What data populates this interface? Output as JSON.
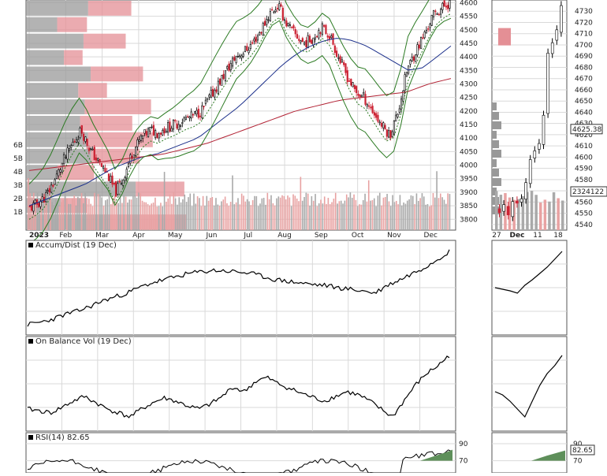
{
  "chart_data": [
    {
      "type": "candlestick",
      "panel": "price-main",
      "x_labels": [
        "2023",
        "Feb",
        "Mar",
        "Apr",
        "May",
        "Jun",
        "Jul",
        "Aug",
        "Sep",
        "Oct",
        "Nov",
        "Dec"
      ],
      "y_ticks": [
        3800,
        3850,
        3900,
        3950,
        4000,
        4050,
        4100,
        4150,
        4200,
        4250,
        4300,
        4350,
        4400,
        4450,
        4500,
        4550,
        4600
      ],
      "ylim": [
        3760,
        4610
      ],
      "volume_axis_labels": [
        "1B",
        "2B",
        "3B",
        "4B",
        "5B",
        "6B"
      ],
      "close_approx": [
        3840,
        3860,
        3890,
        3950,
        4020,
        4080,
        4130,
        4060,
        4010,
        3970,
        3900,
        3960,
        4050,
        4100,
        4130,
        4120,
        4140,
        4150,
        4170,
        4180,
        4200,
        4250,
        4300,
        4350,
        4400,
        4420,
        4450,
        4500,
        4560,
        4590,
        4520,
        4480,
        4450,
        4470,
        4510,
        4480,
        4400,
        4330,
        4270,
        4250,
        4200,
        4150,
        4110,
        4200,
        4350,
        4420,
        4480,
        4550,
        4580,
        4600
      ],
      "sma_50_approx": [
        3850,
        3870,
        3890,
        3910,
        3930,
        3960,
        3990,
        4010,
        4030,
        4040,
        4060,
        4080,
        4100,
        4140,
        4180,
        4220,
        4270,
        4320,
        4370,
        4410,
        4440,
        4460,
        4470,
        4460,
        4440,
        4410,
        4380,
        4350,
        4360,
        4400,
        4440
      ],
      "sma_200_approx": [
        3980,
        3990,
        4000,
        4010,
        4020,
        4030,
        4040,
        4060,
        4080,
        4110,
        4140,
        4170,
        4200,
        4220,
        4240,
        4250,
        4260,
        4270,
        4300,
        4320
      ],
      "volume_profile_bars": 14
    },
    {
      "type": "line",
      "panel": "accum-dist",
      "title": "Accum/Dist (19 Dec)",
      "values_norm": [
        0.05,
        0.08,
        0.12,
        0.18,
        0.22,
        0.28,
        0.35,
        0.4,
        0.45,
        0.52,
        0.58,
        0.62,
        0.66,
        0.7,
        0.72,
        0.74,
        0.73,
        0.72,
        0.7,
        0.66,
        0.62,
        0.6,
        0.58,
        0.56,
        0.55,
        0.52,
        0.5,
        0.48,
        0.45,
        0.55,
        0.62,
        0.7,
        0.78,
        0.88,
        0.98
      ]
    },
    {
      "type": "line",
      "panel": "on-balance-volume",
      "title": "On Balance Vol (19 Dec)",
      "values_norm": [
        0.2,
        0.18,
        0.15,
        0.22,
        0.3,
        0.36,
        0.28,
        0.2,
        0.15,
        0.1,
        0.2,
        0.28,
        0.34,
        0.3,
        0.24,
        0.2,
        0.26,
        0.35,
        0.48,
        0.42,
        0.55,
        0.6,
        0.52,
        0.46,
        0.4,
        0.35,
        0.3,
        0.36,
        0.42,
        0.38,
        0.3,
        0.2,
        0.1,
        0.3,
        0.5,
        0.65,
        0.75,
        0.88
      ]
    },
    {
      "type": "line",
      "panel": "rsi",
      "title": "RSI(14) 82.65",
      "y_ticks": [
        70,
        90
      ],
      "last_value": 82.65
    },
    {
      "type": "candlestick",
      "panel": "price-inset",
      "x_labels": [
        "27",
        "Dec",
        "11",
        "18"
      ],
      "y_ticks": [
        4540,
        4550,
        4560,
        4570,
        4580,
        4590,
        4600,
        4610,
        4620,
        4630,
        4640,
        4650,
        4660,
        4670,
        4680,
        4690,
        4700,
        4710,
        4720,
        4730
      ],
      "ylim": [
        4535,
        4740
      ],
      "last_price_label": "4625.38",
      "last_volume_label": "2324122",
      "close_approx": [
        4552,
        4556,
        4550,
        4560,
        4558,
        4565,
        4575,
        4595,
        4605,
        4612,
        4640,
        4690,
        4700,
        4715,
        4735
      ]
    }
  ],
  "colors": {
    "frame": "#555555",
    "grid": "#d9d9d9",
    "up_candle": "#000000",
    "down_candle": "#cc2233",
    "sma50": "#1a2e8a",
    "sma200": "#b22234",
    "bollinger": "#2b7a22",
    "dotted_line": "#2b7a22",
    "volume_grey": "#a9a9a9",
    "volume_red": "#e8a2a2",
    "profile_grey": "#999999",
    "profile_red": "#e48f95",
    "rsi_fill": "#5e8f5a"
  },
  "icons": [
    "box-checkbox-icon",
    "box-checkbox-icon",
    "box-checkbox-icon"
  ]
}
